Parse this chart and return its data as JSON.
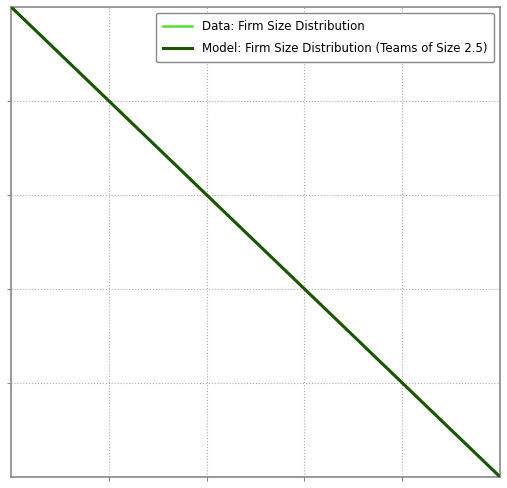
{
  "legend_data": [
    {
      "label": "Data: Firm Size Distribution",
      "color": "#55dd33",
      "linewidth": 1.8
    },
    {
      "label": "Model: Firm Size Distribution (Teams of Size 2.5)",
      "color": "#1a5500",
      "linewidth": 2.2
    }
  ],
  "grid_color": "#aaaaaa",
  "grid_linestyle": ":",
  "background_color": "#ffffff",
  "axis_border_color": "#888888",
  "xlim": [
    0,
    1
  ],
  "ylim": [
    0,
    1
  ],
  "n_points": 500,
  "model_alpha": 1.15,
  "data_alpha": 1.05
}
